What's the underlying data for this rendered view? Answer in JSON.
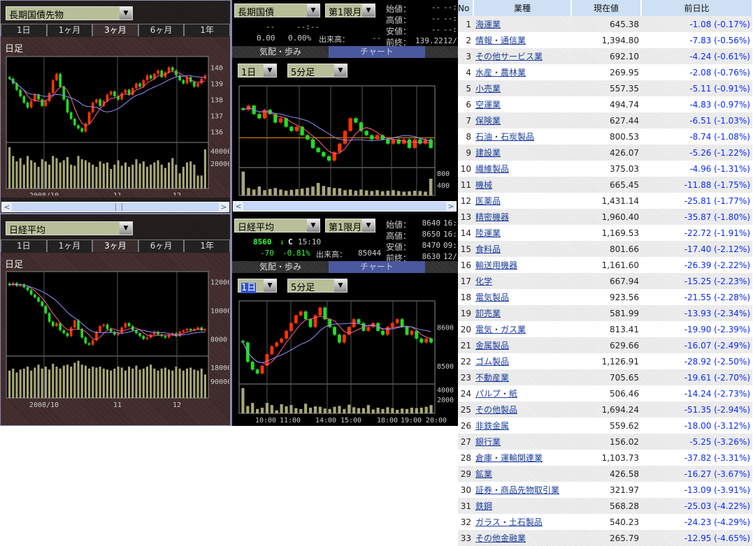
{
  "colors": {
    "up": "#ff3300",
    "down": "#22dd22",
    "volume": "#a8a878",
    "prevline": "#ff9900",
    "ma1": "#ff6090",
    "ma2": "#9090ff",
    "link": "#1a3c9c",
    "change": "#0a2aff"
  },
  "left_top": {
    "instrument": "長期国債先物",
    "tabs": [
      "1日",
      "1ヶ月",
      "3ヶ月",
      "6ヶ月",
      "1年"
    ],
    "active_tab": 2,
    "period_label": "日足",
    "y_ticks": [
      "140",
      "139",
      "138",
      "137",
      "136"
    ],
    "vol_ticks": [
      "40000",
      "20000"
    ],
    "x_labels": [
      "2008/10",
      "11",
      "12"
    ]
  },
  "left_bottom": {
    "instrument": "日経平均",
    "tabs": [
      "1日",
      "1ヶ月",
      "3ヶ月",
      "6ヶ月",
      "1年"
    ],
    "active_tab": 2,
    "period_label": "日足",
    "y_ticks": [
      "12000",
      "10000",
      "8000"
    ],
    "vol_ticks": [
      "180000",
      "90000"
    ],
    "x_labels": [
      "2008/10",
      "11",
      "12"
    ]
  },
  "mid_top": {
    "instrument": "長期国債",
    "contract": "第1限月",
    "price": "--",
    "time": "--:--",
    "change": "0.00",
    "change_pct": "0.00%",
    "volume_label": "出来高：",
    "volume": "--",
    "quote_rows": [
      {
        "label": "始値：",
        "value": "--",
        "time": "--:"
      },
      {
        "label": "高値：",
        "value": "--",
        "time": "--:"
      },
      {
        "label": "安値：",
        "value": "--",
        "time": "--:"
      },
      {
        "label": "前終：",
        "value": "139.22",
        "time": "12/"
      }
    ],
    "tabs": [
      "気配・歩み",
      "チャート"
    ],
    "active_tab": 1,
    "range": "1日",
    "interval": "5分足",
    "vol_ticks": [
      "800",
      "400"
    ]
  },
  "mid_bottom": {
    "instrument": "日経平均",
    "contract": "第1限月",
    "price": "8560",
    "arrow": "↓",
    "flag": "C",
    "time": "15:10",
    "change": "-70",
    "change_pct": "-0.81%",
    "volume_label": "出来高：",
    "volume": "85044",
    "quote_rows": [
      {
        "label": "始値：",
        "value": "8640",
        "time": "16:"
      },
      {
        "label": "高値：",
        "value": "8650",
        "time": "16:"
      },
      {
        "label": "安値：",
        "value": "8470",
        "time": "09:"
      },
      {
        "label": "前終：",
        "value": "8630",
        "time": "12/"
      }
    ],
    "tabs": [
      "気配・歩み",
      "チャート"
    ],
    "active_tab": 1,
    "range": "1日",
    "interval": "5分足",
    "y_ticks": [
      "8600",
      "8500"
    ],
    "vol_ticks": [
      "4000",
      "2000"
    ],
    "x_labels": [
      "10:00",
      "11:00",
      "14:00",
      "15:00",
      "18:00",
      "19:00",
      "20:00"
    ]
  },
  "chart_data": [
    {
      "type": "candlestick",
      "panel": "left_top",
      "ylim": [
        135.5,
        140.5
      ],
      "close": [
        139.3,
        139.0,
        138.6,
        138.2,
        137.8,
        137.5,
        137.9,
        138.3,
        138.0,
        137.6,
        137.9,
        138.4,
        139.2,
        139.6,
        138.8,
        138.0,
        137.2,
        136.8,
        136.4,
        136.2,
        136.0,
        136.5,
        137.2,
        137.8,
        138.0,
        137.6,
        137.9,
        138.3,
        138.5,
        138.2,
        138.0,
        138.4,
        138.6,
        138.3,
        138.7,
        139.0,
        138.8,
        139.2,
        139.5,
        139.3,
        139.6,
        139.8,
        139.4,
        139.7,
        140.0,
        139.8,
        139.5,
        139.2,
        139.0,
        139.4,
        139.1,
        138.8,
        139.0,
        139.3,
        139.5
      ],
      "volume": [
        38000,
        30000,
        25000,
        28000,
        22000,
        30000,
        26000,
        24000,
        20000,
        27000,
        25000,
        22000,
        30000,
        28000,
        24000,
        26000,
        29000,
        22000,
        21000,
        30000,
        27000,
        26000,
        24000,
        22000,
        20000,
        25000,
        23000,
        24000,
        18000,
        22000,
        26000,
        21000,
        24000,
        20000,
        22000,
        27000,
        23000,
        25000,
        20000,
        22000,
        24000,
        26000,
        22000,
        19000,
        24000,
        28000,
        22000,
        14000,
        20000,
        24000,
        25000,
        22000,
        12000,
        12000,
        36000
      ]
    },
    {
      "type": "candlestick",
      "panel": "left_bottom",
      "ylim": [
        7000,
        12500
      ],
      "close": [
        11750,
        11900,
        11700,
        11800,
        11600,
        11400,
        11100,
        10900,
        10600,
        10300,
        9800,
        9200,
        8900,
        9100,
        8600,
        8400,
        8200,
        8800,
        9300,
        8700,
        8100,
        7700,
        7600,
        7900,
        8500,
        8900,
        9000,
        8700,
        8500,
        8300,
        8400,
        8800,
        9100,
        8900,
        8600,
        8400,
        8200,
        8000,
        8100,
        8300,
        8500,
        8300,
        8200,
        8100,
        8300,
        8400,
        8200,
        8500,
        8600,
        8700,
        8600,
        8700,
        8800,
        8600,
        8650
      ],
      "volume": [
        140000,
        150000,
        130000,
        145000,
        150000,
        160000,
        140000,
        155000,
        170000,
        150000,
        160000,
        145000,
        175000,
        160000,
        150000,
        165000,
        170000,
        160000,
        180000,
        190000,
        170000,
        165000,
        150000,
        160000,
        155000,
        160000,
        150000,
        145000,
        140000,
        150000,
        160000,
        155000,
        140000,
        160000,
        150000,
        165000,
        145000,
        150000,
        160000,
        170000,
        150000,
        140000,
        150000,
        155000,
        145000,
        140000,
        160000,
        150000,
        140000,
        150000,
        155000,
        145000,
        140000,
        150000,
        120000
      ]
    },
    {
      "type": "candlestick",
      "panel": "mid_top",
      "ylim": [
        138.9,
        139.8
      ],
      "prev_close": 139.22,
      "close": [
        139.55,
        139.6,
        139.5,
        139.45,
        139.55,
        139.5,
        139.4,
        139.45,
        139.35,
        139.3,
        139.35,
        139.25,
        139.2,
        139.1,
        139.05,
        139.0,
        138.95,
        139.05,
        139.15,
        139.3,
        139.45,
        139.4,
        139.3,
        139.25,
        139.2,
        139.25,
        139.2,
        139.15,
        139.2,
        139.15,
        139.2,
        139.1,
        139.2,
        139.15,
        139.2,
        139.1
      ],
      "volume": [
        800,
        250,
        200,
        300,
        180,
        220,
        250,
        200,
        160,
        190,
        210,
        230,
        260,
        300,
        420,
        320,
        280,
        250,
        240,
        180,
        200,
        160,
        200,
        170,
        150,
        180,
        140,
        160,
        180,
        150,
        130,
        140,
        160,
        150,
        130,
        560
      ]
    },
    {
      "type": "candlestick",
      "panel": "mid_bottom",
      "ylim": [
        8460,
        8660
      ],
      "close": [
        8560,
        8510,
        8490,
        8480,
        8500,
        8530,
        8550,
        8560,
        8570,
        8590,
        8610,
        8630,
        8640,
        8620,
        8600,
        8630,
        8650,
        8620,
        8600,
        8580,
        8560,
        8580,
        8600,
        8620,
        8610,
        8590,
        8600,
        8610,
        8590,
        8580,
        8600,
        8610,
        8620,
        8600,
        8580,
        8590,
        8570,
        8560,
        8570,
        8560
      ],
      "volume": [
        5800,
        1700,
        2400,
        1000,
        1300,
        2400,
        1900,
        700,
        2100,
        1600,
        1900,
        1200,
        1000,
        2200,
        1300,
        1600,
        1500,
        1100,
        1000,
        1500,
        1700,
        1000,
        2000,
        1400,
        1200,
        1200,
        1900,
        900,
        1300,
        1000,
        1400,
        1200,
        800,
        1100,
        1000,
        1300,
        1200,
        1300,
        1500,
        1900
      ]
    }
  ],
  "table": {
    "headers": [
      "No",
      "業種",
      "現在値",
      "前日比"
    ],
    "rows": [
      [
        "1",
        "海運業",
        "645.38",
        "-1.08 (-0.17%)"
      ],
      [
        "2",
        "情報・通信業",
        "1,394.80",
        "-7.83 (-0.56%)"
      ],
      [
        "3",
        "その他サービス業",
        "692.10",
        "-4.24 (-0.61%)"
      ],
      [
        "4",
        "水産・農林業",
        "269.95",
        "-2.08 (-0.76%)"
      ],
      [
        "5",
        "小売業",
        "557.35",
        "-5.11 (-0.91%)"
      ],
      [
        "6",
        "空運業",
        "494.74",
        "-4.83 (-0.97%)"
      ],
      [
        "7",
        "保険業",
        "627.44",
        "-6.51 (-1.03%)"
      ],
      [
        "8",
        "石油・石炭製品",
        "800.53",
        "-8.74 (-1.08%)"
      ],
      [
        "9",
        "建設業",
        "426.07",
        "-5.26 (-1.22%)"
      ],
      [
        "10",
        "繊維製品",
        "375.03",
        "-4.96 (-1.31%)"
      ],
      [
        "11",
        "機械",
        "665.45",
        "-11.88 (-1.75%)"
      ],
      [
        "12",
        "医薬品",
        "1,431.14",
        "-25.81 (-1.77%)"
      ],
      [
        "13",
        "精密機器",
        "1,960.40",
        "-35.87 (-1.80%)"
      ],
      [
        "14",
        "陸運業",
        "1,169.53",
        "-22.72 (-1.91%)"
      ],
      [
        "15",
        "食料品",
        "801.66",
        "-17.40 (-2.12%)"
      ],
      [
        "16",
        "輸送用機器",
        "1,161.60",
        "-26.39 (-2.22%)"
      ],
      [
        "17",
        "化学",
        "667.94",
        "-15.25 (-2.23%)"
      ],
      [
        "18",
        "電気製品",
        "923.56",
        "-21.55 (-2.28%)"
      ],
      [
        "19",
        "卸売業",
        "581.99",
        "-13.93 (-2.34%)"
      ],
      [
        "20",
        "電気・ガス業",
        "813.41",
        "-19.90 (-2.39%)"
      ],
      [
        "21",
        "金属製品",
        "629.66",
        "-16.07 (-2.49%)"
      ],
      [
        "22",
        "ゴム製品",
        "1,126.91",
        "-28.92 (-2.50%)"
      ],
      [
        "23",
        "不動産業",
        "705.65",
        "-19.61 (-2.70%)"
      ],
      [
        "24",
        "パルプ・紙",
        "506.46",
        "-14.24 (-2.73%)"
      ],
      [
        "25",
        "その他製品",
        "1,694.24",
        "-51.35 (-2.94%)"
      ],
      [
        "26",
        "非鉄金属",
        "559.62",
        "-18.00 (-3.12%)"
      ],
      [
        "27",
        "銀行業",
        "156.02",
        "-5.25 (-3.26%)"
      ],
      [
        "28",
        "倉庫・運輸関連業",
        "1,103.73",
        "-37.82 (-3.31%)"
      ],
      [
        "29",
        "鉱業",
        "426.58",
        "-16.27 (-3.67%)"
      ],
      [
        "30",
        "証券・商品先物取引業",
        "321.97",
        "-13.09 (-3.91%)"
      ],
      [
        "31",
        "鉄鋼",
        "568.28",
        "-25.03 (-4.22%)"
      ],
      [
        "32",
        "ガラス・土石製品",
        "540.23",
        "-24.23 (-4.29%)"
      ],
      [
        "33",
        "その他金融業",
        "265.79",
        "-12.95 (-4.65%)"
      ]
    ]
  }
}
